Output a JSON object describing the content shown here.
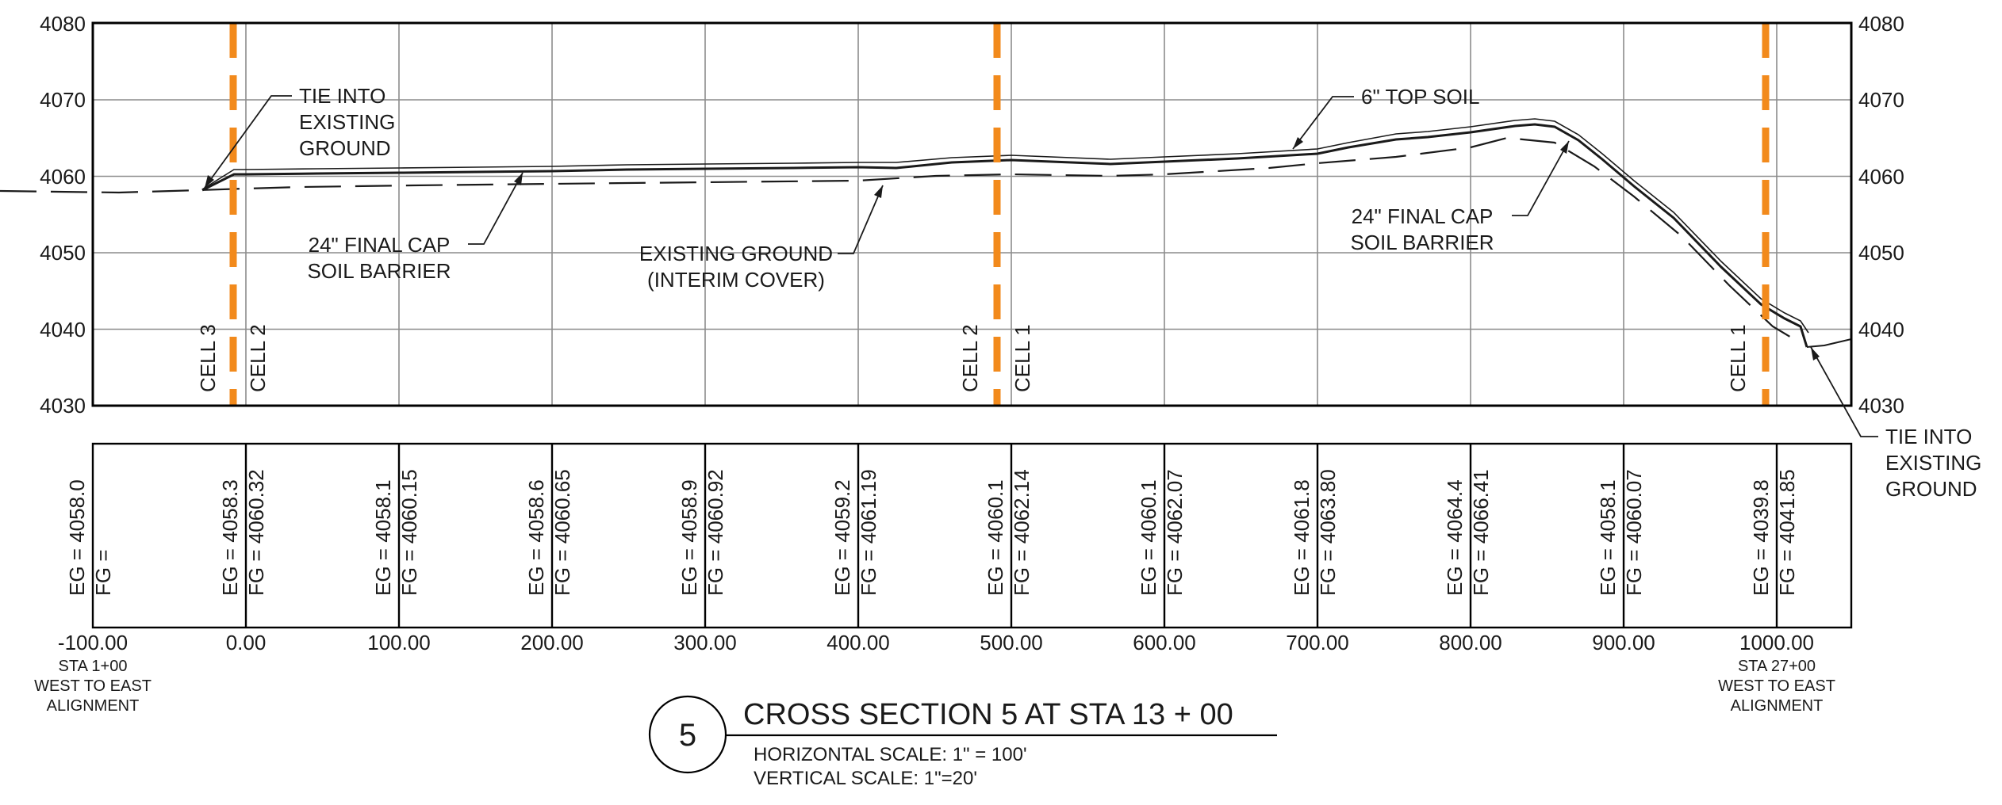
{
  "section": {
    "number": "5",
    "title": "CROSS SECTION 5 AT STA 13 + 00",
    "horizontal_scale": "HORIZONTAL SCALE: 1\" = 100'",
    "vertical_scale": "VERTICAL SCALE: 1\"=20'"
  },
  "elevation_ticks": [
    "4080",
    "4070",
    "4060",
    "4050",
    "4040",
    "4030"
  ],
  "station_ticks": [
    "-100.00",
    "0.00",
    "100.00",
    "200.00",
    "300.00",
    "400.00",
    "500.00",
    "600.00",
    "700.00",
    "800.00",
    "900.00",
    "1000.00"
  ],
  "station_notes": {
    "left": [
      "STA 1+00",
      "WEST TO EAST",
      "ALIGNMENT"
    ],
    "right": [
      "STA 27+00",
      "WEST TO EAST",
      "ALIGNMENT"
    ]
  },
  "table": [
    {
      "eg": "EG = 4058.0",
      "fg": "FG ="
    },
    {
      "eg": "EG = 4058.3",
      "fg": "FG = 4060.32"
    },
    {
      "eg": "EG = 4058.1",
      "fg": "FG = 4060.15"
    },
    {
      "eg": "EG = 4058.6",
      "fg": "FG = 4060.65"
    },
    {
      "eg": "EG = 4058.9",
      "fg": "FG = 4060.92"
    },
    {
      "eg": "EG = 4059.2",
      "fg": "FG = 4061.19"
    },
    {
      "eg": "EG = 4060.1",
      "fg": "FG = 4062.14"
    },
    {
      "eg": "EG = 4060.1",
      "fg": "FG = 4062.07"
    },
    {
      "eg": "EG = 4061.8",
      "fg": "FG = 4063.80"
    },
    {
      "eg": "EG = 4064.4",
      "fg": "FG = 4066.41"
    },
    {
      "eg": "EG = 4058.1",
      "fg": "FG = 4060.07"
    },
    {
      "eg": "EG = 4039.8",
      "fg": "FG = 4041.85"
    }
  ],
  "cells": [
    {
      "left": "CELL 3",
      "right": "CELL 2"
    },
    {
      "left": "CELL 2",
      "right": "CELL 1"
    },
    {
      "left": "CELL 1",
      "right": ""
    }
  ],
  "annotations": {
    "tie_left": [
      "TIE INTO",
      "EXISTING",
      "GROUND"
    ],
    "cap_left": [
      "24\" FINAL CAP",
      "SOIL BARRIER"
    ],
    "existing": [
      "EXISTING GROUND",
      "(INTERIM COVER)"
    ],
    "topsoil": "6\" TOP SOIL",
    "cap_right": [
      "24\" FINAL CAP",
      "SOIL BARRIER"
    ],
    "tie_right": [
      "TIE INTO",
      "EXISTING",
      "GROUND"
    ]
  },
  "colors": {
    "cell_boundary": "#f28a1c",
    "line": "#1a1a1a",
    "grid": "#8c8c8c"
  }
}
